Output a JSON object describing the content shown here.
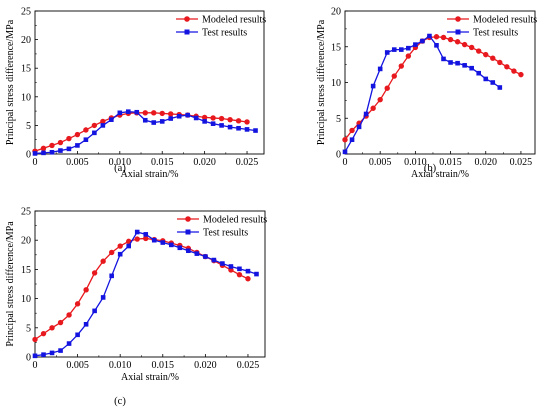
{
  "colors": {
    "modeled": "#e8191e",
    "test": "#1414e0",
    "axis": "#000000"
  },
  "chart_data": [
    {
      "type": "line",
      "panel_label": "(a)",
      "xlabel": "Axial strain/%",
      "ylabel": "Principal stress difference/MPa",
      "xlim": [
        0,
        0.027
      ],
      "ylim": [
        0,
        25
      ],
      "xticks": [
        0,
        0.005,
        0.01,
        0.015,
        0.02,
        0.025
      ],
      "xtick_labels": [
        "0",
        "0.005",
        "0.010",
        "0.015",
        "0.020",
        "0.025"
      ],
      "yticks": [
        0,
        5,
        10,
        15,
        20,
        25
      ],
      "ytick_labels": [
        "0",
        "5",
        "10",
        "15",
        "20",
        "25"
      ],
      "legend_position": "top-right",
      "series": [
        {
          "name": "Modeled results",
          "marker": "circle",
          "color": "#e8191e",
          "x": [
            0,
            0.001,
            0.002,
            0.003,
            0.004,
            0.005,
            0.006,
            0.007,
            0.008,
            0.009,
            0.01,
            0.011,
            0.012,
            0.013,
            0.014,
            0.015,
            0.016,
            0.017,
            0.018,
            0.019,
            0.02,
            0.021,
            0.022,
            0.023,
            0.024,
            0.025
          ],
          "y": [
            0.5,
            1.0,
            1.5,
            2.0,
            2.7,
            3.4,
            4.2,
            5.0,
            5.7,
            6.3,
            6.8,
            7.1,
            7.2,
            7.2,
            7.2,
            7.1,
            7.0,
            6.9,
            6.8,
            6.6,
            6.4,
            6.3,
            6.2,
            6.0,
            5.8,
            5.6
          ]
        },
        {
          "name": "Test results",
          "marker": "square",
          "color": "#1414e0",
          "x": [
            0,
            0.001,
            0.002,
            0.003,
            0.004,
            0.005,
            0.006,
            0.007,
            0.008,
            0.009,
            0.01,
            0.011,
            0.012,
            0.013,
            0.014,
            0.015,
            0.016,
            0.017,
            0.018,
            0.019,
            0.02,
            0.021,
            0.022,
            0.023,
            0.024,
            0.025,
            0.026
          ],
          "y": [
            0.1,
            0.2,
            0.3,
            0.6,
            0.9,
            1.5,
            2.5,
            3.7,
            5.0,
            6.0,
            7.2,
            7.4,
            7.3,
            5.9,
            5.5,
            5.7,
            6.2,
            6.6,
            6.8,
            6.3,
            5.7,
            5.3,
            5.0,
            4.7,
            4.5,
            4.3,
            4.1
          ]
        }
      ]
    },
    {
      "type": "line",
      "panel_label": "(b)",
      "xlabel": "Axial strain/%",
      "ylabel": "Principal stress difference/MPa",
      "xlim": [
        0,
        0.027
      ],
      "ylim": [
        0,
        20
      ],
      "xticks": [
        0,
        0.005,
        0.01,
        0.015,
        0.02,
        0.025
      ],
      "xtick_labels": [
        "0",
        "0.005",
        "0.010",
        "0.015",
        "0.020",
        "0.025"
      ],
      "yticks": [
        0,
        5,
        10,
        15,
        20
      ],
      "ytick_labels": [
        "0",
        "5",
        "10",
        "15",
        "20"
      ],
      "legend_position": "top-right",
      "series": [
        {
          "name": "Modeled results",
          "marker": "circle",
          "color": "#e8191e",
          "x": [
            0,
            0.001,
            0.002,
            0.003,
            0.004,
            0.005,
            0.006,
            0.007,
            0.008,
            0.009,
            0.01,
            0.011,
            0.012,
            0.013,
            0.014,
            0.015,
            0.016,
            0.017,
            0.018,
            0.019,
            0.02,
            0.021,
            0.022,
            0.023,
            0.024,
            0.025
          ],
          "y": [
            2.0,
            3.3,
            4.3,
            5.3,
            6.4,
            7.6,
            9.2,
            10.9,
            12.3,
            13.7,
            14.9,
            15.8,
            16.3,
            16.4,
            16.3,
            16.0,
            15.7,
            15.3,
            14.9,
            14.4,
            13.9,
            13.4,
            12.8,
            12.2,
            11.6,
            11.1
          ]
        },
        {
          "name": "Test results",
          "marker": "square",
          "color": "#1414e0",
          "x": [
            0,
            0.001,
            0.002,
            0.003,
            0.004,
            0.005,
            0.006,
            0.007,
            0.008,
            0.009,
            0.01,
            0.011,
            0.012,
            0.013,
            0.014,
            0.015,
            0.016,
            0.017,
            0.018,
            0.019,
            0.02,
            0.021,
            0.022
          ],
          "y": [
            0.3,
            2.0,
            3.8,
            5.6,
            9.5,
            11.9,
            14.2,
            14.6,
            14.6,
            14.8,
            15.3,
            15.8,
            16.5,
            15.2,
            13.3,
            12.8,
            12.7,
            12.4,
            12.0,
            11.3,
            10.5,
            10.0,
            9.3
          ]
        }
      ]
    },
    {
      "type": "line",
      "panel_label": "(c)",
      "xlabel": "Axial strain/%",
      "ylabel": "Principal stress difference/MPa",
      "xlim": [
        0,
        0.027
      ],
      "ylim": [
        0,
        25
      ],
      "xticks": [
        0,
        0.005,
        0.01,
        0.015,
        0.02,
        0.025
      ],
      "xtick_labels": [
        "0",
        "0.005",
        "0.010",
        "0.015",
        "0.020",
        "0.025"
      ],
      "yticks": [
        0,
        5,
        10,
        15,
        20,
        25
      ],
      "ytick_labels": [
        "0",
        "5",
        "10",
        "15",
        "20",
        "25"
      ],
      "legend_position": "top-right",
      "series": [
        {
          "name": "Modeled results",
          "marker": "circle",
          "color": "#e8191e",
          "x": [
            0,
            0.001,
            0.002,
            0.003,
            0.004,
            0.005,
            0.006,
            0.007,
            0.008,
            0.009,
            0.01,
            0.011,
            0.012,
            0.013,
            0.014,
            0.015,
            0.016,
            0.017,
            0.018,
            0.019,
            0.02,
            0.021,
            0.022,
            0.023,
            0.024,
            0.025
          ],
          "y": [
            3.0,
            4.0,
            5.0,
            5.9,
            7.2,
            9.1,
            11.5,
            14.4,
            16.4,
            17.9,
            19.0,
            19.8,
            20.2,
            20.3,
            20.1,
            19.9,
            19.5,
            19.1,
            18.6,
            17.9,
            17.2,
            16.5,
            15.7,
            14.9,
            14.1,
            13.4
          ]
        },
        {
          "name": "Test results",
          "marker": "square",
          "color": "#1414e0",
          "x": [
            0,
            0.001,
            0.002,
            0.003,
            0.004,
            0.005,
            0.006,
            0.007,
            0.008,
            0.009,
            0.01,
            0.011,
            0.012,
            0.013,
            0.014,
            0.015,
            0.016,
            0.017,
            0.018,
            0.019,
            0.02,
            0.021,
            0.022,
            0.023,
            0.024,
            0.025,
            0.026
          ],
          "y": [
            0.2,
            0.4,
            0.7,
            1.1,
            2.3,
            3.8,
            5.6,
            7.9,
            10.2,
            13.9,
            17.6,
            19.0,
            21.4,
            21.0,
            20.0,
            19.6,
            19.2,
            18.7,
            18.2,
            17.7,
            17.2,
            16.6,
            16.0,
            15.5,
            15.1,
            14.7,
            14.2
          ]
        }
      ]
    }
  ]
}
